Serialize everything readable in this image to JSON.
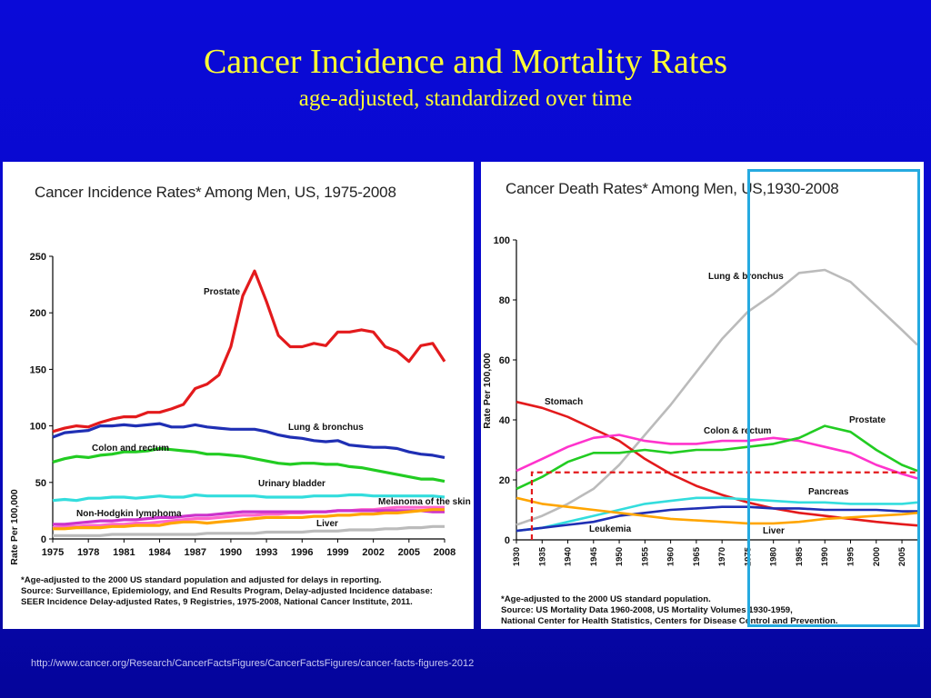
{
  "slide": {
    "title": "Cancer Incidence and Mortality Rates",
    "subtitle": "age-adjusted, standardized over time",
    "source_url": "http://www.cancer.org/Research/CancerFactsFigures/CancerFactsFigures/cancer-facts-figures-2012"
  },
  "chart_data": [
    {
      "type": "line",
      "title": "Cancer Incidence Rates* Among Men, US, 1975-2008",
      "ylabel": "Rate Per 100,000",
      "xlabel": "",
      "xlim": [
        1975,
        2008
      ],
      "ylim": [
        0,
        250
      ],
      "xticks": [
        1975,
        1978,
        1981,
        1984,
        1987,
        1990,
        1993,
        1996,
        1999,
        2002,
        2005,
        2008
      ],
      "yticks": [
        0,
        50,
        100,
        150,
        200,
        250
      ],
      "grid": false,
      "footnote": [
        "*Age-adjusted to the 2000 US standard population and adjusted for delays in reporting.",
        "Source: Surveillance, Epidemiology, and End Results Program, Delay-adjusted Incidence database:",
        "SEER Incidence Delay-adjusted Rates, 9 Registries, 1975-2008, National Cancer Institute, 2011."
      ],
      "series": [
        {
          "name": "Prostate",
          "color": "#e31a1c",
          "x": [
            1975,
            1976,
            1977,
            1978,
            1979,
            1980,
            1981,
            1982,
            1983,
            1984,
            1985,
            1986,
            1987,
            1988,
            1989,
            1990,
            1991,
            1992,
            1993,
            1994,
            1995,
            1996,
            1997,
            1998,
            1999,
            2000,
            2001,
            2002,
            2003,
            2004,
            2005,
            2006,
            2007,
            2008
          ],
          "y": [
            95,
            98,
            100,
            99,
            103,
            106,
            108,
            108,
            112,
            112,
            115,
            119,
            133,
            137,
            145,
            170,
            215,
            237,
            210,
            180,
            170,
            170,
            173,
            171,
            183,
            183,
            185,
            183,
            170,
            166,
            157,
            171,
            173,
            157
          ]
        },
        {
          "name": "Lung & bronchus",
          "color": "#1f2fb4",
          "x": [
            1975,
            1976,
            1977,
            1978,
            1979,
            1980,
            1981,
            1982,
            1983,
            1984,
            1985,
            1986,
            1987,
            1988,
            1989,
            1990,
            1991,
            1992,
            1993,
            1994,
            1995,
            1996,
            1997,
            1998,
            1999,
            2000,
            2001,
            2002,
            2003,
            2004,
            2005,
            2006,
            2007,
            2008
          ],
          "y": [
            90,
            94,
            95,
            96,
            100,
            100,
            101,
            100,
            101,
            102,
            99,
            99,
            101,
            99,
            98,
            97,
            97,
            97,
            95,
            92,
            90,
            89,
            87,
            86,
            87,
            83,
            82,
            81,
            81,
            80,
            77,
            75,
            74,
            72
          ]
        },
        {
          "name": "Colon and rectum",
          "color": "#22cc22",
          "x": [
            1975,
            1976,
            1977,
            1978,
            1979,
            1980,
            1981,
            1982,
            1983,
            1984,
            1985,
            1986,
            1987,
            1988,
            1989,
            1990,
            1991,
            1992,
            1993,
            1994,
            1995,
            1996,
            1997,
            1998,
            1999,
            2000,
            2001,
            2002,
            2003,
            2004,
            2005,
            2006,
            2007,
            2008
          ],
          "y": [
            68,
            71,
            73,
            72,
            74,
            75,
            77,
            77,
            78,
            80,
            79,
            78,
            77,
            75,
            75,
            74,
            73,
            71,
            69,
            67,
            66,
            67,
            67,
            66,
            66,
            64,
            63,
            61,
            59,
            57,
            55,
            53,
            53,
            51
          ]
        },
        {
          "name": "Urinary bladder",
          "color": "#33dddd",
          "x": [
            1975,
            1976,
            1977,
            1978,
            1979,
            1980,
            1981,
            1982,
            1983,
            1984,
            1985,
            1986,
            1987,
            1988,
            1989,
            1990,
            1991,
            1992,
            1993,
            1994,
            1995,
            1996,
            1997,
            1998,
            1999,
            2000,
            2001,
            2002,
            2003,
            2004,
            2005,
            2006,
            2007,
            2008
          ],
          "y": [
            34,
            35,
            34,
            36,
            36,
            37,
            37,
            36,
            37,
            38,
            37,
            37,
            39,
            38,
            38,
            38,
            38,
            38,
            37,
            37,
            37,
            37,
            38,
            38,
            38,
            39,
            39,
            38,
            38,
            38,
            38,
            38,
            38,
            37
          ]
        },
        {
          "name": "Melanoma of the skin",
          "color": "#ff66cc",
          "x": [
            1975,
            1976,
            1977,
            1978,
            1979,
            1980,
            1981,
            1982,
            1983,
            1984,
            1985,
            1986,
            1987,
            1988,
            1989,
            1990,
            1991,
            1992,
            1993,
            1994,
            1995,
            1996,
            1997,
            1998,
            1999,
            2000,
            2001,
            2002,
            2003,
            2004,
            2005,
            2006,
            2007,
            2008
          ],
          "y": [
            10,
            11,
            11,
            12,
            12,
            13,
            13,
            14,
            14,
            15,
            16,
            17,
            18,
            18,
            19,
            20,
            21,
            21,
            22,
            22,
            23,
            23,
            24,
            24,
            25,
            25,
            26,
            26,
            27,
            28,
            28,
            28,
            28,
            28
          ]
        },
        {
          "name": "Non-Hodgkin lymphoma",
          "color": "#cc33cc",
          "x": [
            1975,
            1976,
            1977,
            1978,
            1979,
            1980,
            1981,
            1982,
            1983,
            1984,
            1985,
            1986,
            1987,
            1988,
            1989,
            1990,
            1991,
            1992,
            1993,
            1994,
            1995,
            1996,
            1997,
            1998,
            1999,
            2000,
            2001,
            2002,
            2003,
            2004,
            2005,
            2006,
            2007,
            2008
          ],
          "y": [
            13,
            13,
            14,
            15,
            16,
            16,
            17,
            17,
            18,
            19,
            19,
            20,
            21,
            21,
            22,
            23,
            24,
            24,
            24,
            24,
            24,
            24,
            24,
            24,
            25,
            25,
            25,
            25,
            25,
            25,
            25,
            25,
            24,
            24
          ]
        },
        {
          "name": "Liver",
          "color": "#bbbbbb",
          "x": [
            1975,
            1976,
            1977,
            1978,
            1979,
            1980,
            1981,
            1982,
            1983,
            1984,
            1985,
            1986,
            1987,
            1988,
            1989,
            1990,
            1991,
            1992,
            1993,
            1994,
            1995,
            1996,
            1997,
            1998,
            1999,
            2000,
            2001,
            2002,
            2003,
            2004,
            2005,
            2006,
            2007,
            2008
          ],
          "y": [
            3,
            3,
            3,
            3,
            3,
            4,
            4,
            4,
            4,
            4,
            4,
            4,
            4,
            5,
            5,
            5,
            5,
            5,
            6,
            6,
            6,
            6,
            7,
            7,
            7,
            8,
            8,
            8,
            9,
            9,
            10,
            10,
            11,
            11
          ]
        },
        {
          "name": "",
          "color": "#ffa500",
          "x": [
            1975,
            1976,
            1977,
            1978,
            1979,
            1980,
            1981,
            1982,
            1983,
            1984,
            1985,
            1986,
            1987,
            1988,
            1989,
            1990,
            1991,
            1992,
            1993,
            1994,
            1995,
            1996,
            1997,
            1998,
            1999,
            2000,
            2001,
            2002,
            2003,
            2004,
            2005,
            2006,
            2007,
            2008
          ],
          "y": [
            9,
            9,
            10,
            10,
            10,
            11,
            11,
            12,
            12,
            12,
            14,
            15,
            15,
            14,
            15,
            16,
            17,
            18,
            19,
            19,
            19,
            19,
            20,
            20,
            21,
            21,
            22,
            22,
            23,
            23,
            24,
            25,
            26,
            26
          ]
        }
      ]
    },
    {
      "type": "line",
      "title": "Cancer Death Rates* Among Men, US,1930-2008",
      "ylabel": "Rate Per 100,000",
      "xlabel": "",
      "xlim": [
        1930,
        2008
      ],
      "ylim": [
        0,
        100
      ],
      "xticks": [
        1930,
        1935,
        1940,
        1945,
        1950,
        1955,
        1960,
        1965,
        1970,
        1975,
        1980,
        1985,
        1990,
        1995,
        2000,
        2005
      ],
      "yticks": [
        0,
        20,
        40,
        60,
        80,
        100
      ],
      "grid": false,
      "footnote": [
        "*Age-adjusted to the 2000 US standard population.",
        "Source: US Mortality Data 1960-2008, US Mortality Volumes 1930-1959,",
        "National Center for Health Statistics, Centers for Disease Control and Prevention."
      ],
      "highlight_dashed_box": {
        "x_from": 1933,
        "x_to": 2008,
        "y_at": 22.5,
        "color": "#e31a1c"
      },
      "series": [
        {
          "name": "Lung & bronchus",
          "color": "#bbbbbb",
          "x": [
            1930,
            1935,
            1940,
            1945,
            1950,
            1955,
            1960,
            1965,
            1970,
            1975,
            1980,
            1985,
            1990,
            1995,
            2000,
            2005,
            2008
          ],
          "y": [
            5,
            8,
            12,
            17,
            25,
            35,
            45,
            56,
            67,
            76,
            82,
            89,
            90,
            86,
            78,
            70,
            65
          ]
        },
        {
          "name": "Stomach",
          "color": "#e31a1c",
          "x": [
            1930,
            1935,
            1940,
            1945,
            1950,
            1955,
            1960,
            1965,
            1970,
            1975,
            1980,
            1985,
            1990,
            1995,
            2000,
            2005,
            2008
          ],
          "y": [
            46,
            44,
            41,
            37,
            33,
            27,
            22,
            18,
            15,
            12.5,
            10.5,
            9,
            8,
            7,
            6,
            5.2,
            4.8
          ]
        },
        {
          "name": "Colon & rectum",
          "color": "#ff33cc",
          "x": [
            1930,
            1935,
            1940,
            1945,
            1950,
            1955,
            1960,
            1965,
            1970,
            1975,
            1980,
            1985,
            1990,
            1995,
            2000,
            2005,
            2008
          ],
          "y": [
            23,
            27,
            31,
            34,
            35,
            33,
            32,
            32,
            33,
            33,
            34,
            33,
            31,
            29,
            25,
            22,
            20.5
          ]
        },
        {
          "name": "Prostate",
          "color": "#22cc22",
          "x": [
            1930,
            1935,
            1940,
            1945,
            1950,
            1955,
            1960,
            1965,
            1970,
            1975,
            1980,
            1985,
            1990,
            1995,
            2000,
            2005,
            2008
          ],
          "y": [
            17,
            21,
            26,
            29,
            29,
            30,
            29,
            30,
            30,
            31,
            32,
            34,
            38,
            36,
            30,
            25,
            23
          ]
        },
        {
          "name": "Pancreas",
          "color": "#33dddd",
          "x": [
            1930,
            1935,
            1940,
            1945,
            1950,
            1955,
            1960,
            1965,
            1970,
            1975,
            1980,
            1985,
            1990,
            1995,
            2000,
            2005,
            2008
          ],
          "y": [
            3,
            4,
            6,
            8,
            10,
            12,
            13,
            14,
            14,
            13.5,
            13,
            12.5,
            12.5,
            12,
            12,
            12,
            12.5
          ]
        },
        {
          "name": "Leukemia",
          "color": "#1f2fb4",
          "x": [
            1930,
            1935,
            1940,
            1945,
            1950,
            1955,
            1960,
            1965,
            1970,
            1975,
            1980,
            1985,
            1990,
            1995,
            2000,
            2005,
            2008
          ],
          "y": [
            3,
            4,
            5,
            6,
            8,
            9,
            10,
            10.5,
            11,
            11,
            10.5,
            10.5,
            10,
            10,
            10,
            9.5,
            9.5
          ]
        },
        {
          "name": "Liver",
          "color": "#ffa500",
          "x": [
            1930,
            1935,
            1940,
            1945,
            1950,
            1955,
            1960,
            1965,
            1970,
            1975,
            1980,
            1985,
            1990,
            1995,
            2000,
            2005,
            2008
          ],
          "y": [
            14,
            12,
            11,
            10,
            9,
            8,
            7,
            6.5,
            6,
            5.5,
            5.5,
            6,
            7,
            7.5,
            8,
            8.5,
            9
          ]
        }
      ]
    }
  ]
}
